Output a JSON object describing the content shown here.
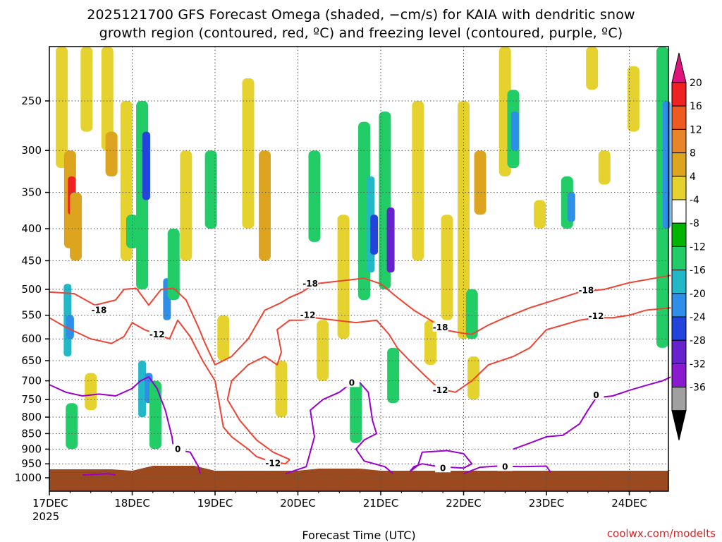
{
  "title_line1": "2025121700 GFS Forecast Omega (shaded, −cm/s) for KAIA with dendritic snow",
  "title_line2": "growth region (contoured, red, ºC) and freezing level (contoured, purple, ºC)",
  "credit": "coolwx.com/modelts",
  "colors": {
    "dgz_contour": "#ee4433",
    "freezing_contour": "#9900cc",
    "ground": "#9a4a1e",
    "grid": "#555555"
  },
  "chart_data": {
    "type": "heatmap",
    "xlabel": "Forecast Time (UTC)",
    "ylabel": "",
    "x_ticks": [
      "17DEC",
      "18DEC",
      "19DEC",
      "20DEC",
      "21DEC",
      "22DEC",
      "23DEC",
      "24DEC"
    ],
    "x_year_label": "2025",
    "xlim_days": [
      0,
      7.5
    ],
    "y_scale": "pressure (hPa, reversed)",
    "y_ticks": [
      250,
      300,
      350,
      400,
      450,
      500,
      550,
      600,
      650,
      700,
      750,
      800,
      850,
      900,
      950,
      1000
    ],
    "ylim": [
      1025,
      200
    ],
    "grid": true,
    "colorbar": {
      "ticks": [
        "20",
        "16",
        "12",
        "8",
        "4",
        "-4",
        "-8",
        "-12",
        "-16",
        "-20",
        "-24",
        "-28",
        "-32",
        "-36"
      ],
      "colors": [
        "#e0147a",
        "#ee2222",
        "#ee5a20",
        "#e8842a",
        "#dda420",
        "#e6d22e",
        "#ffffff",
        "#00b400",
        "#22cc66",
        "#22b8c8",
        "#2e8ee8",
        "#2244dd",
        "#6622cc",
        "#8a1ad0",
        "#a0a0a0",
        "#000000"
      ]
    },
    "omega_cells": [
      {
        "day": 0.15,
        "p1": 200,
        "p2": 320,
        "v": 4
      },
      {
        "day": 0.25,
        "p1": 300,
        "p2": 430,
        "v": 10
      },
      {
        "day": 0.27,
        "p1": 330,
        "p2": 380,
        "v": 16
      },
      {
        "day": 0.32,
        "p1": 350,
        "p2": 450,
        "v": 8
      },
      {
        "day": 0.22,
        "p1": 490,
        "p2": 640,
        "v": -12
      },
      {
        "day": 0.25,
        "p1": 550,
        "p2": 600,
        "v": -16
      },
      {
        "day": 0.27,
        "p1": 760,
        "p2": 900,
        "v": -8
      },
      {
        "day": 0.45,
        "p1": 200,
        "p2": 280,
        "v": 4
      },
      {
        "day": 0.5,
        "p1": 680,
        "p2": 780,
        "v": 4
      },
      {
        "day": 0.7,
        "p1": 200,
        "p2": 300,
        "v": 4
      },
      {
        "day": 0.75,
        "p1": 280,
        "p2": 330,
        "v": 8
      },
      {
        "day": 0.93,
        "p1": 250,
        "p2": 450,
        "v": 4
      },
      {
        "day": 1.0,
        "p1": 380,
        "p2": 430,
        "v": -8
      },
      {
        "day": 1.12,
        "p1": 250,
        "p2": 500,
        "v": -8
      },
      {
        "day": 1.17,
        "p1": 280,
        "p2": 360,
        "v": -20
      },
      {
        "day": 1.12,
        "p1": 650,
        "p2": 800,
        "v": -12
      },
      {
        "day": 1.2,
        "p1": 680,
        "p2": 760,
        "v": -16
      },
      {
        "day": 1.28,
        "p1": 700,
        "p2": 900,
        "v": -8
      },
      {
        "day": 1.42,
        "p1": 480,
        "p2": 560,
        "v": -16
      },
      {
        "day": 1.5,
        "p1": 400,
        "p2": 520,
        "v": -8
      },
      {
        "day": 1.65,
        "p1": 300,
        "p2": 450,
        "v": 6
      },
      {
        "day": 1.95,
        "p1": 300,
        "p2": 400,
        "v": -8
      },
      {
        "day": 2.1,
        "p1": 550,
        "p2": 650,
        "v": 4
      },
      {
        "day": 2.4,
        "p1": 230,
        "p2": 400,
        "v": 4
      },
      {
        "day": 2.6,
        "p1": 300,
        "p2": 450,
        "v": 8
      },
      {
        "day": 2.8,
        "p1": 650,
        "p2": 800,
        "v": 4
      },
      {
        "day": 3.2,
        "p1": 300,
        "p2": 420,
        "v": -8
      },
      {
        "day": 3.3,
        "p1": 560,
        "p2": 700,
        "v": 4
      },
      {
        "day": 3.55,
        "p1": 380,
        "p2": 600,
        "v": 4
      },
      {
        "day": 3.7,
        "p1": 700,
        "p2": 880,
        "v": -8
      },
      {
        "day": 3.8,
        "p1": 270,
        "p2": 520,
        "v": -8
      },
      {
        "day": 3.88,
        "p1": 330,
        "p2": 470,
        "v": -12
      },
      {
        "day": 3.92,
        "p1": 380,
        "p2": 440,
        "v": -20
      },
      {
        "day": 4.05,
        "p1": 260,
        "p2": 500,
        "v": -8
      },
      {
        "day": 4.12,
        "p1": 370,
        "p2": 470,
        "v": -24
      },
      {
        "day": 4.15,
        "p1": 620,
        "p2": 760,
        "v": -8
      },
      {
        "day": 4.45,
        "p1": 250,
        "p2": 450,
        "v": 4
      },
      {
        "day": 4.6,
        "p1": 560,
        "p2": 660,
        "v": 4
      },
      {
        "day": 4.8,
        "p1": 380,
        "p2": 560,
        "v": 4
      },
      {
        "day": 5.0,
        "p1": 250,
        "p2": 600,
        "v": 4
      },
      {
        "day": 5.12,
        "p1": 640,
        "p2": 750,
        "v": 4
      },
      {
        "day": 5.2,
        "p1": 300,
        "p2": 380,
        "v": 10
      },
      {
        "day": 5.1,
        "p1": 500,
        "p2": 600,
        "v": -8
      },
      {
        "day": 5.5,
        "p1": 200,
        "p2": 330,
        "v": 4
      },
      {
        "day": 5.6,
        "p1": 240,
        "p2": 320,
        "v": -8
      },
      {
        "day": 5.62,
        "p1": 260,
        "p2": 300,
        "v": -16
      },
      {
        "day": 5.92,
        "p1": 360,
        "p2": 400,
        "v": 4
      },
      {
        "day": 6.25,
        "p1": 330,
        "p2": 400,
        "v": -8
      },
      {
        "day": 6.3,
        "p1": 350,
        "p2": 390,
        "v": -16
      },
      {
        "day": 6.55,
        "p1": 200,
        "p2": 240,
        "v": 4
      },
      {
        "day": 6.7,
        "p1": 300,
        "p2": 340,
        "v": 4
      },
      {
        "day": 7.05,
        "p1": 220,
        "p2": 280,
        "v": 4
      },
      {
        "day": 7.4,
        "p1": 200,
        "p2": 620,
        "v": -8
      },
      {
        "day": 7.45,
        "p1": 250,
        "p2": 400,
        "v": -16
      }
    ],
    "dgz_contours": [
      {
        "label": "-18",
        "points": [
          [
            0,
            505
          ],
          [
            0.3,
            508
          ],
          [
            0.55,
            530
          ],
          [
            0.8,
            520
          ],
          [
            0.9,
            500
          ],
          [
            1.05,
            498
          ],
          [
            1.2,
            530
          ],
          [
            1.35,
            500
          ],
          [
            1.5,
            498
          ],
          [
            1.65,
            520
          ],
          [
            1.8,
            575
          ],
          [
            1.88,
            610
          ],
          [
            2.0,
            660
          ],
          [
            2.2,
            640
          ],
          [
            2.4,
            600
          ],
          [
            2.6,
            540
          ],
          [
            2.8,
            525
          ],
          [
            2.9,
            515
          ],
          [
            3.05,
            505
          ],
          [
            3.2,
            490
          ],
          [
            3.5,
            485
          ],
          [
            3.8,
            480
          ],
          [
            4.0,
            490
          ],
          [
            4.2,
            515
          ],
          [
            4.4,
            540
          ],
          [
            4.6,
            560
          ],
          [
            4.75,
            580
          ],
          [
            5.0,
            588
          ],
          [
            5.1,
            590
          ],
          [
            5.3,
            570
          ],
          [
            5.5,
            555
          ],
          [
            5.8,
            535
          ],
          [
            6.1,
            520
          ],
          [
            6.4,
            505
          ],
          [
            6.7,
            500
          ],
          [
            7.0,
            488
          ],
          [
            7.3,
            480
          ],
          [
            7.5,
            475
          ]
        ],
        "labels_at": [
          [
            0.6,
            540
          ],
          [
            3.15,
            490
          ],
          [
            4.72,
            575
          ],
          [
            6.48,
            502
          ]
        ]
      },
      {
        "label": "-12",
        "points": [
          [
            0,
            555
          ],
          [
            0.2,
            575
          ],
          [
            0.5,
            600
          ],
          [
            0.75,
            610
          ],
          [
            0.9,
            595
          ],
          [
            1.0,
            565
          ],
          [
            1.15,
            580
          ],
          [
            1.3,
            590
          ],
          [
            1.45,
            600
          ],
          [
            1.55,
            560
          ],
          [
            1.7,
            595
          ],
          [
            1.85,
            650
          ],
          [
            2.0,
            700
          ],
          [
            2.05,
            760
          ],
          [
            2.1,
            830
          ],
          [
            2.2,
            860
          ],
          [
            2.4,
            900
          ],
          [
            2.5,
            925
          ],
          [
            2.6,
            935
          ],
          [
            2.75,
            945
          ],
          [
            2.85,
            950
          ],
          [
            2.9,
            935
          ],
          [
            2.7,
            910
          ],
          [
            2.5,
            870
          ],
          [
            2.3,
            810
          ],
          [
            2.15,
            750
          ],
          [
            2.2,
            700
          ],
          [
            2.3,
            680
          ],
          [
            2.4,
            660
          ],
          [
            2.6,
            640
          ],
          [
            2.75,
            660
          ],
          [
            2.8,
            630
          ],
          [
            2.75,
            580
          ],
          [
            2.9,
            560
          ],
          [
            3.05,
            560
          ],
          [
            3.2,
            555
          ],
          [
            3.45,
            560
          ],
          [
            3.7,
            565
          ],
          [
            3.95,
            560
          ],
          [
            4.1,
            590
          ],
          [
            4.2,
            620
          ],
          [
            4.35,
            650
          ],
          [
            4.55,
            690
          ],
          [
            4.7,
            720
          ],
          [
            4.9,
            730
          ],
          [
            5.1,
            700
          ],
          [
            5.3,
            660
          ],
          [
            5.6,
            640
          ],
          [
            5.8,
            620
          ],
          [
            6.0,
            580
          ],
          [
            6.2,
            570
          ],
          [
            6.4,
            560
          ],
          [
            6.6,
            555
          ],
          [
            6.8,
            555
          ],
          [
            7.0,
            550
          ],
          [
            7.2,
            540
          ],
          [
            7.5,
            535
          ]
        ],
        "labels_at": [
          [
            1.3,
            590
          ],
          [
            3.12,
            550
          ],
          [
            4.72,
            725
          ],
          [
            6.6,
            552
          ],
          [
            2.7,
            948
          ]
        ]
      }
    ],
    "freezing_contours": [
      {
        "label": "0",
        "points": [
          [
            0,
            710
          ],
          [
            0.2,
            730
          ],
          [
            0.4,
            740
          ],
          [
            0.6,
            735
          ],
          [
            0.8,
            740
          ],
          [
            1.0,
            720
          ],
          [
            1.1,
            700
          ],
          [
            1.2,
            690
          ],
          [
            1.3,
            720
          ],
          [
            1.4,
            780
          ],
          [
            1.48,
            860
          ],
          [
            1.5,
            900
          ],
          [
            1.7,
            910
          ],
          [
            1.8,
            960
          ],
          [
            1.82,
            985
          ]
        ],
        "labels_at": [
          [
            1.55,
            900
          ]
        ]
      },
      {
        "label": "0",
        "points": [
          [
            2.85,
            985
          ],
          [
            3.1,
            960
          ],
          [
            3.2,
            860
          ],
          [
            3.15,
            780
          ],
          [
            3.3,
            750
          ],
          [
            3.5,
            730
          ],
          [
            3.62,
            710
          ],
          [
            3.75,
            705
          ],
          [
            3.85,
            730
          ],
          [
            3.9,
            810
          ],
          [
            3.95,
            850
          ],
          [
            3.8,
            870
          ],
          [
            3.7,
            900
          ],
          [
            3.8,
            940
          ],
          [
            4.05,
            960
          ],
          [
            4.15,
            985
          ]
        ],
        "labels_at": [
          [
            3.65,
            705
          ]
        ]
      },
      {
        "label": "0",
        "points": [
          [
            4.35,
            978
          ],
          [
            4.45,
            955
          ],
          [
            4.5,
            910
          ],
          [
            4.8,
            905
          ],
          [
            5.0,
            915
          ],
          [
            5.1,
            950
          ],
          [
            5.0,
            965
          ],
          [
            4.7,
            960
          ],
          [
            4.5,
            950
          ],
          [
            4.4,
            960
          ],
          [
            4.35,
            978
          ]
        ],
        "labels_at": [
          [
            4.75,
            965
          ]
        ]
      },
      {
        "label": "0",
        "points": [
          [
            5.0,
            985
          ],
          [
            5.2,
            962
          ],
          [
            5.4,
            958
          ],
          [
            5.7,
            960
          ],
          [
            6.0,
            958
          ],
          [
            6.05,
            980
          ]
        ],
        "labels_at": [
          [
            5.5,
            960
          ]
        ]
      },
      {
        "label": "0",
        "points": [
          [
            5.6,
            900
          ],
          [
            5.8,
            880
          ],
          [
            6.0,
            860
          ],
          [
            6.2,
            855
          ],
          [
            6.4,
            820
          ],
          [
            6.5,
            780
          ],
          [
            6.6,
            745
          ],
          [
            6.8,
            740
          ],
          [
            7.0,
            725
          ],
          [
            7.2,
            712
          ],
          [
            7.4,
            700
          ],
          [
            7.5,
            690
          ]
        ],
        "labels_at": [
          [
            6.6,
            738
          ]
        ]
      },
      {
        "label": "0",
        "points": [
          [
            0.4,
            990
          ],
          [
            0.7,
            985
          ],
          [
            0.8,
            990
          ]
        ],
        "labels_at": []
      }
    ]
  }
}
